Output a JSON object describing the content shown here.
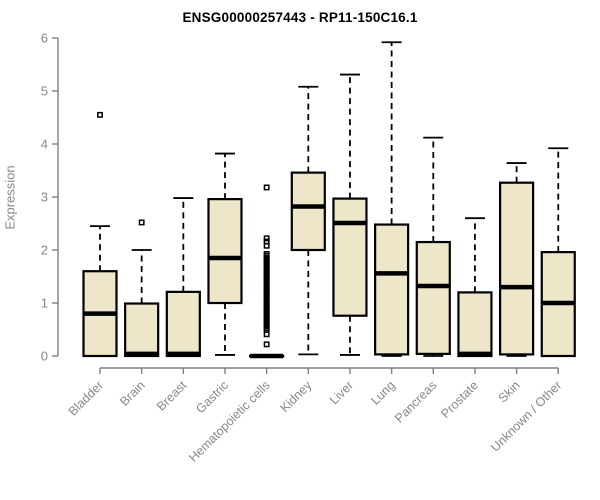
{
  "chart_data": {
    "type": "boxplot",
    "title": "ENSG00000257443 - RP11-150C16.1",
    "ylabel": "Expression",
    "xlabel": "",
    "ylim": [
      0,
      6
    ],
    "yticks": [
      0,
      1,
      2,
      3,
      4,
      5,
      6
    ],
    "grid": "off",
    "legend": "none",
    "categories": [
      "Bladder",
      "Brain",
      "Breast",
      "Gastric",
      "Hematopoietic cells",
      "Kidney",
      "Liver",
      "Lung",
      "Pancreas",
      "Prostate",
      "Skin",
      "Unknown / Other"
    ],
    "series": [
      {
        "name": "Bladder",
        "whisker_low": 0,
        "q1": 0,
        "median": 0.8,
        "q3": 1.6,
        "whisker_high": 2.45,
        "outliers": [
          4.55
        ],
        "outlier_band": null
      },
      {
        "name": "Brain",
        "whisker_low": 0,
        "q1": 0,
        "median": 0.04,
        "q3": 0.99,
        "whisker_high": 2.0,
        "outliers": [
          2.52
        ],
        "outlier_band": null
      },
      {
        "name": "Breast",
        "whisker_low": 0,
        "q1": 0,
        "median": 0.04,
        "q3": 1.21,
        "whisker_high": 2.98,
        "outliers": [],
        "outlier_band": null
      },
      {
        "name": "Gastric",
        "whisker_low": 0.02,
        "q1": 1.0,
        "median": 1.85,
        "q3": 2.96,
        "whisker_high": 3.82,
        "outliers": [],
        "outlier_band": null
      },
      {
        "name": "Hematopoietic cells",
        "whisker_low": 0,
        "q1": 0,
        "median": 0,
        "q3": 0,
        "whisker_high": 0,
        "outliers": [
          0.22,
          0.41,
          2.08,
          2.16,
          2.22,
          3.18
        ],
        "outlier_band": {
          "min": 0.49,
          "max": 1.94
        }
      },
      {
        "name": "Kidney",
        "whisker_low": 0.03,
        "q1": 2.0,
        "median": 2.82,
        "q3": 3.46,
        "whisker_high": 5.08,
        "outliers": [],
        "outlier_band": null
      },
      {
        "name": "Liver",
        "whisker_low": 0.02,
        "q1": 0.76,
        "median": 2.51,
        "q3": 2.97,
        "whisker_high": 5.31,
        "outliers": [],
        "outlier_band": null
      },
      {
        "name": "Lung",
        "whisker_low": 0,
        "q1": 0.03,
        "median": 1.56,
        "q3": 2.48,
        "whisker_high": 5.92,
        "outliers": [],
        "outlier_band": null
      },
      {
        "name": "Pancreas",
        "whisker_low": 0,
        "q1": 0.04,
        "median": 1.32,
        "q3": 2.15,
        "whisker_high": 4.12,
        "outliers": [],
        "outlier_band": null
      },
      {
        "name": "Prostate",
        "whisker_low": 0,
        "q1": 0,
        "median": 0.04,
        "q3": 1.2,
        "whisker_high": 2.6,
        "outliers": [],
        "outlier_band": null
      },
      {
        "name": "Skin",
        "whisker_low": 0,
        "q1": 0.03,
        "median": 1.3,
        "q3": 3.27,
        "whisker_high": 3.64,
        "outliers": [],
        "outlier_band": null
      },
      {
        "name": "Unknown / Other",
        "whisker_low": 0,
        "q1": 0,
        "median": 1.0,
        "q3": 1.96,
        "whisker_high": 3.92,
        "outliers": [],
        "outlier_band": null
      }
    ],
    "colors": {
      "box_fill": "#EDE6C9",
      "box_stroke": "#000000",
      "median": "#000000",
      "whisker": "#000000",
      "outlier": "#000000",
      "axis": "#808080",
      "tick_label": "#888888",
      "title": "#000000"
    }
  }
}
